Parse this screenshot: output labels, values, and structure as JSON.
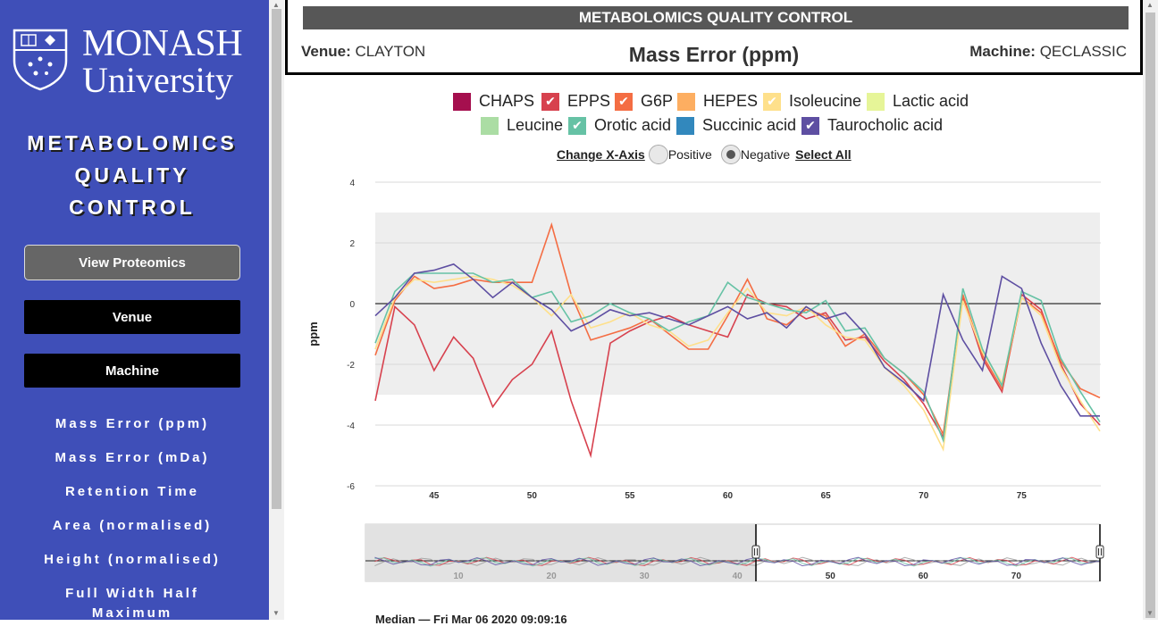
{
  "sidebar": {
    "logo": {
      "line1": "MONASH",
      "line2": "University",
      "crest_icon": "monash-crest-icon"
    },
    "title_lines": [
      "METABOLOMICS",
      "QUALITY",
      "CONTROL"
    ],
    "view_proteomics": "View Proteomics",
    "venue_button": "Venue",
    "machine_button": "Machine",
    "nav": [
      "Mass Error (ppm)",
      "Mass Error (mDa)",
      "Retention Time",
      "Area (normalised)",
      "Height (normalised)",
      "Full Width Half",
      "Maximum"
    ]
  },
  "header": {
    "bar_title": "METABOLOMICS QUALITY CONTROL",
    "venue_label": "Venue:",
    "venue_value": "CLAYTON",
    "main_title": "Mass Error (ppm)",
    "machine_label": "Machine:",
    "machine_value": "QECLASSIC"
  },
  "legend": [
    {
      "name": "CHAPS",
      "color": "#a50f4e",
      "checked": false
    },
    {
      "name": "EPPS",
      "color": "#d7414e",
      "checked": true
    },
    {
      "name": "G6P",
      "color": "#f46d43",
      "checked": true
    },
    {
      "name": "HEPES",
      "color": "#fdae61",
      "checked": false
    },
    {
      "name": "Isoleucine",
      "color": "#fee08b",
      "checked": true
    },
    {
      "name": "Lactic acid",
      "color": "#e6f598",
      "checked": false
    },
    {
      "name": "Leucine",
      "color": "#abdda4",
      "checked": false
    },
    {
      "name": "Orotic acid",
      "color": "#66c2a5",
      "checked": true
    },
    {
      "name": "Succinic acid",
      "color": "#3288bd",
      "checked": false
    },
    {
      "name": "Taurocholic acid",
      "color": "#5e4fa2",
      "checked": true
    }
  ],
  "controls": {
    "change_x_axis": "Change X-Axis",
    "positive": "Positive",
    "negative": "Negative",
    "negative_selected": true,
    "select_all": "Select All"
  },
  "bottom_text": "Median    —  Fri Mar 06 2020 09:09:16",
  "chart_data": {
    "type": "line",
    "ylabel": "ppm",
    "ylim": [
      -6,
      4
    ],
    "yticks": [
      4,
      2,
      0,
      -2,
      -4,
      -6
    ],
    "xlim": [
      42,
      79
    ],
    "xticks": [
      45,
      50,
      55,
      60,
      65,
      70,
      75
    ],
    "band": [
      -3,
      3
    ],
    "x": [
      42,
      43,
      44,
      45,
      46,
      47,
      48,
      49,
      50,
      51,
      52,
      53,
      54,
      55,
      56,
      57,
      58,
      59,
      60,
      61,
      62,
      63,
      64,
      65,
      66,
      67,
      68,
      69,
      70,
      71,
      72,
      73,
      74,
      75,
      76,
      77,
      78,
      79
    ],
    "series": [
      {
        "name": "EPPS",
        "color": "#d7414e",
        "values": [
          -3.2,
          -0.1,
          -0.7,
          -2.2,
          -1.1,
          -1.8,
          -3.4,
          -2.5,
          -2.0,
          -0.9,
          -3.2,
          -5.0,
          -1.3,
          -0.9,
          -0.6,
          -0.4,
          -0.7,
          -0.9,
          -1.1,
          0.3,
          0.0,
          -0.1,
          -0.5,
          -0.3,
          -1.2,
          -1.1,
          -1.9,
          -2.5,
          -3.3,
          -4.4,
          0.2,
          -1.8,
          -2.9,
          0.3,
          -0.2,
          -2.0,
          -3.3,
          -4.0
        ]
      },
      {
        "name": "G6P",
        "color": "#f46d43",
        "values": [
          -1.7,
          0.1,
          0.9,
          0.5,
          0.6,
          0.8,
          0.7,
          0.7,
          0.7,
          2.6,
          0.3,
          -1.2,
          -1.0,
          -0.8,
          -0.5,
          -1.0,
          -1.5,
          -1.5,
          -0.4,
          0.8,
          -0.5,
          -0.7,
          -0.2,
          -0.4,
          -1.4,
          -1.0,
          -1.8,
          -2.3,
          -3.0,
          -4.3,
          0.3,
          -1.7,
          -2.8,
          0.2,
          -0.3,
          -1.9,
          -2.8,
          -3.1
        ]
      },
      {
        "name": "Isoleucine",
        "color": "#fee08b",
        "values": [
          -1.5,
          0.2,
          0.8,
          0.7,
          0.8,
          0.9,
          0.8,
          0.6,
          0.2,
          -0.4,
          0.3,
          -0.8,
          -0.6,
          -0.3,
          -0.7,
          -0.9,
          -1.4,
          -1.2,
          -0.3,
          0.5,
          -0.3,
          -0.4,
          -0.1,
          -0.7,
          -1.1,
          -1.2,
          -2.1,
          -2.7,
          -3.5,
          -4.8,
          0.1,
          -1.6,
          -2.6,
          0.2,
          -0.4,
          -2.1,
          -3.2,
          -4.2
        ]
      },
      {
        "name": "Orotic acid",
        "color": "#66c2a5",
        "values": [
          -1.3,
          0.4,
          1.0,
          1.0,
          1.0,
          1.0,
          0.7,
          0.8,
          0.2,
          0.4,
          -0.6,
          -0.4,
          0.0,
          -0.3,
          -0.5,
          -0.9,
          -0.6,
          -0.4,
          0.7,
          0.2,
          0.0,
          -0.2,
          -0.3,
          0.1,
          -0.9,
          -0.8,
          -1.8,
          -2.3,
          -2.9,
          -4.5,
          0.5,
          -1.5,
          -2.7,
          0.4,
          0.1,
          -1.8,
          -2.9,
          -3.9
        ]
      },
      {
        "name": "Taurocholic acid",
        "color": "#5e4fa2",
        "values": [
          -0.4,
          0.2,
          1.0,
          1.1,
          1.3,
          0.8,
          0.2,
          0.7,
          0.2,
          -0.2,
          -0.9,
          -0.6,
          -0.2,
          -0.4,
          -0.3,
          -0.5,
          -0.7,
          -0.4,
          -0.1,
          -0.5,
          -0.3,
          -0.8,
          -0.1,
          -0.5,
          -0.3,
          -1.0,
          -2.1,
          -2.6,
          -3.2,
          0.3,
          -1.2,
          -2.2,
          0.9,
          0.5,
          -1.3,
          -2.7,
          -3.7,
          -3.7
        ]
      }
    ],
    "navigator": {
      "xticks": [
        10,
        20,
        30,
        40,
        50,
        60,
        70
      ],
      "xlim": [
        0,
        79
      ],
      "selected_range": [
        42,
        79
      ]
    }
  }
}
